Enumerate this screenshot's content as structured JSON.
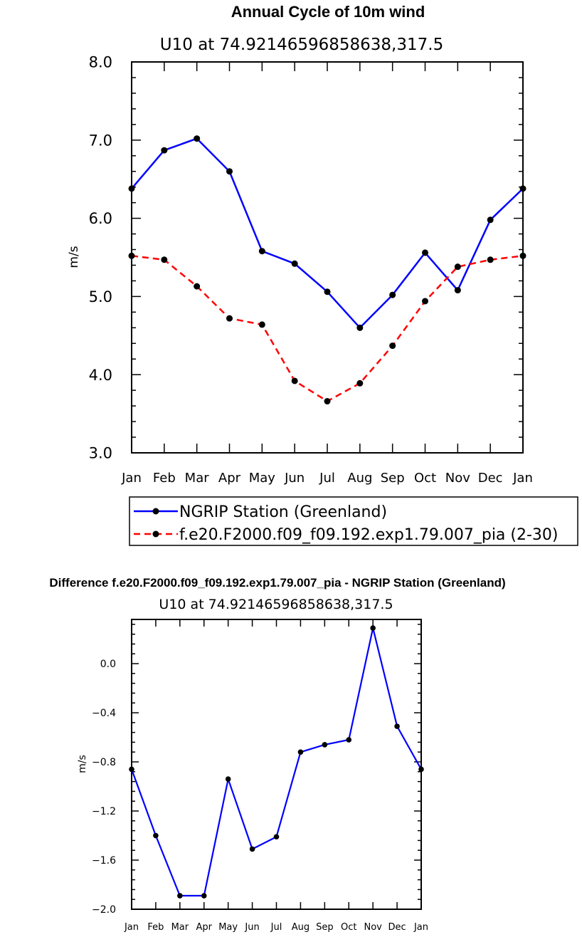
{
  "chart_data": [
    {
      "type": "line",
      "title": "Annual Cycle of 10m wind",
      "subtitle": "U10 at 74.92146596858638,317.5",
      "xlabel": "",
      "ylabel": "m/s",
      "categories": [
        "Jan",
        "Feb",
        "Mar",
        "Apr",
        "May",
        "Jun",
        "Jul",
        "Aug",
        "Sep",
        "Oct",
        "Nov",
        "Dec",
        "Jan"
      ],
      "ylim": [
        3.0,
        8.0
      ],
      "yticks": [
        3.0,
        4.0,
        5.0,
        6.0,
        7.0,
        8.0
      ],
      "ytick_labels": [
        "3.0",
        "4.0",
        "5.0",
        "6.0",
        "7.0",
        "8.0"
      ],
      "series": [
        {
          "name": "NGRIP Station (Greenland)",
          "color": "#0000ff",
          "dash": "solid",
          "values": [
            6.38,
            6.87,
            7.02,
            6.6,
            5.58,
            5.42,
            5.06,
            4.6,
            5.02,
            5.56,
            5.08,
            5.98,
            6.38
          ]
        },
        {
          "name": "f.e20.F2000.f09_f09.192.exp1.79.007_pia (2-30)",
          "color": "#ff0000",
          "dash": "dashed",
          "values": [
            5.52,
            5.47,
            5.13,
            4.72,
            4.64,
            3.92,
            3.66,
            3.89,
            4.37,
            4.94,
            5.38,
            5.47,
            5.52
          ]
        }
      ],
      "legend": "below"
    },
    {
      "type": "line",
      "title": "Difference f.e20.F2000.f09_f09.192.exp1.79.007_pia - NGRIP Station (Greenland)",
      "subtitle": "U10 at 74.92146596858638,317.5",
      "xlabel": "",
      "ylabel": "m/s",
      "categories": [
        "Jan",
        "Feb",
        "Mar",
        "Apr",
        "May",
        "Jun",
        "Jul",
        "Aug",
        "Sep",
        "Oct",
        "Nov",
        "Dec",
        "Jan"
      ],
      "ylim": [
        -2.0,
        0.36
      ],
      "yticks": [
        -2.0,
        -1.6,
        -1.2,
        -0.8,
        -0.4,
        0.0
      ],
      "ytick_labels": [
        "−2.0",
        "−1.6",
        "−1.2",
        "−0.8",
        "−0.4",
        "0.0"
      ],
      "series": [
        {
          "name": "Difference",
          "color": "#0000ff",
          "dash": "solid",
          "values": [
            -0.86,
            -1.4,
            -1.89,
            -1.89,
            -0.94,
            -1.51,
            -1.41,
            -0.72,
            -0.66,
            -0.62,
            0.29,
            -0.51,
            -0.86
          ]
        }
      ]
    }
  ]
}
